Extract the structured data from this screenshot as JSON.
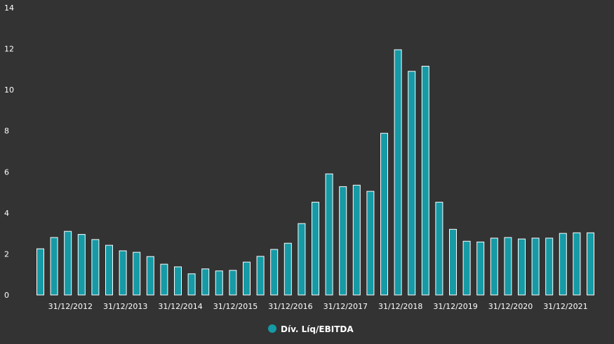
{
  "chart_data": {
    "type": "bar",
    "title": "",
    "xlabel": "",
    "ylabel": "",
    "ylim": [
      0,
      14
    ],
    "yticks": [
      "0",
      "2",
      "4",
      "6",
      "8",
      "10",
      "12",
      "14"
    ],
    "grid": false,
    "legend_position": "bottom-center",
    "series": [
      {
        "name": "Dív. Líq/EBITDA",
        "color": "#159aa6",
        "values": [
          2.25,
          2.8,
          3.1,
          2.95,
          2.7,
          2.42,
          2.15,
          2.08,
          1.87,
          1.5,
          1.37,
          1.03,
          1.27,
          1.17,
          1.2,
          1.6,
          1.88,
          2.22,
          2.52,
          3.48,
          4.52,
          5.9,
          5.28,
          5.35,
          5.05,
          7.88,
          11.95,
          10.9,
          11.15,
          4.52,
          3.2,
          2.62,
          2.58,
          2.77,
          2.8,
          2.73,
          2.77,
          2.77,
          3.0,
          3.03,
          3.03
        ]
      }
    ],
    "xtick_labels": [
      "31/12/2012",
      "31/12/2013",
      "31/12/2014",
      "31/12/2015",
      "31/12/2016",
      "31/12/2017",
      "31/12/2018",
      "31/12/2019",
      "31/12/2020",
      "31/12/2021"
    ],
    "xtick_bar_index": [
      3,
      7,
      11,
      15,
      19,
      23,
      27,
      31,
      35,
      39
    ]
  }
}
